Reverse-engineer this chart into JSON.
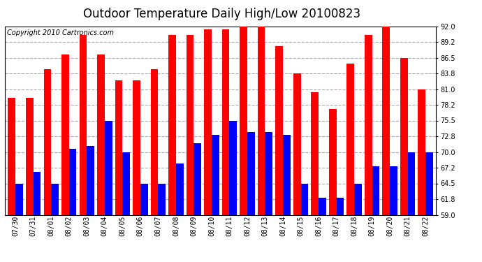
{
  "title": "Outdoor Temperature Daily High/Low 20100823",
  "copyright": "Copyright 2010 Cartronics.com",
  "dates": [
    "07/30",
    "07/31",
    "08/01",
    "08/02",
    "08/03",
    "08/04",
    "08/05",
    "08/06",
    "08/07",
    "08/08",
    "08/09",
    "08/10",
    "08/11",
    "08/12",
    "08/13",
    "08/14",
    "08/15",
    "08/16",
    "08/17",
    "08/18",
    "08/19",
    "08/20",
    "08/21",
    "08/22"
  ],
  "highs": [
    79.5,
    79.5,
    84.5,
    87.0,
    90.5,
    87.0,
    82.5,
    82.5,
    84.5,
    90.5,
    90.5,
    91.5,
    91.5,
    93.0,
    93.0,
    88.5,
    83.8,
    80.5,
    77.5,
    85.5,
    90.5,
    93.0,
    86.5,
    81.0
  ],
  "lows": [
    64.5,
    66.5,
    64.5,
    70.5,
    71.0,
    75.5,
    70.0,
    64.5,
    64.5,
    68.0,
    71.5,
    73.0,
    75.5,
    73.5,
    73.5,
    73.0,
    64.5,
    62.0,
    62.0,
    64.5,
    67.5,
    67.5,
    70.0,
    70.0
  ],
  "high_color": "#ff0000",
  "low_color": "#0000ff",
  "bg_color": "#ffffff",
  "plot_bg_color": "#ffffff",
  "grid_color": "#aaaaaa",
  "yticks": [
    59.0,
    61.8,
    64.5,
    67.2,
    70.0,
    72.8,
    75.5,
    78.2,
    81.0,
    83.8,
    86.5,
    89.2,
    92.0
  ],
  "ymin": 59.0,
  "ymax": 92.0,
  "title_fontsize": 12,
  "copyright_fontsize": 7,
  "tick_fontsize": 7,
  "bar_width": 0.42
}
